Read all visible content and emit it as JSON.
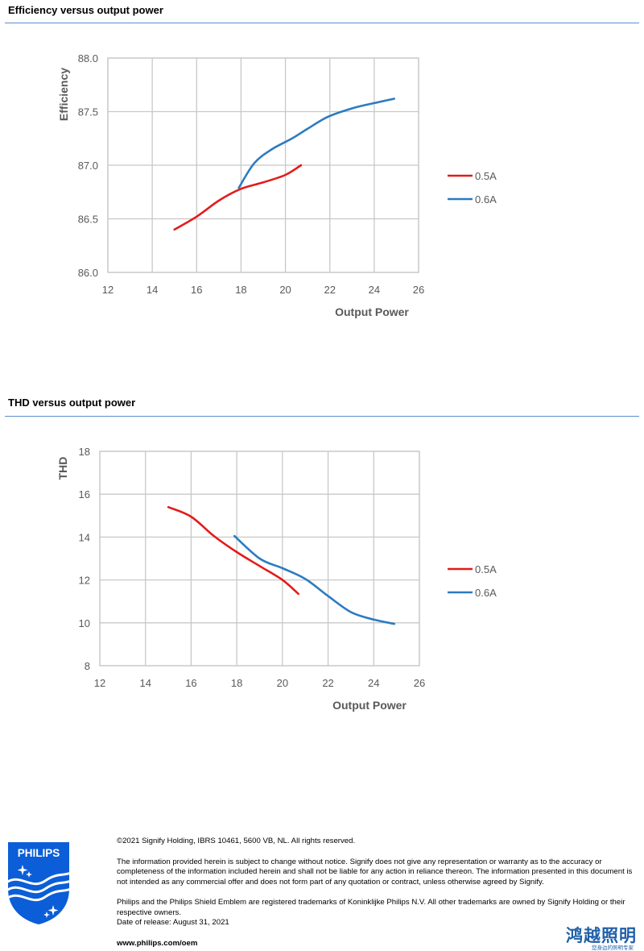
{
  "sections": [
    {
      "title": "Efficiency versus output power"
    },
    {
      "title": "THD versus output power"
    }
  ],
  "chart_data": [
    {
      "type": "line",
      "title": "",
      "xlabel": "Output Power",
      "ylabel": "Efficiency",
      "xlim": [
        12,
        26
      ],
      "ylim": [
        86.0,
        88.0
      ],
      "x_ticks": [
        "12",
        "14",
        "16",
        "18",
        "20",
        "22",
        "24",
        "26"
      ],
      "y_ticks": [
        "86.0",
        "86.5",
        "87.0",
        "87.5",
        "88.0"
      ],
      "grid": true,
      "legend_position": "right",
      "series": [
        {
          "name": "0.5A",
          "color": "#e31b1b",
          "x": [
            15.0,
            16.0,
            17.0,
            18.0,
            19.0,
            20.0,
            20.7
          ],
          "y": [
            86.4,
            86.52,
            86.67,
            86.78,
            86.84,
            86.91,
            87.0
          ]
        },
        {
          "name": "0.6A",
          "color": "#2c7bc0",
          "x": [
            17.9,
            18.6,
            19.4,
            20.3,
            21.0,
            21.9,
            23.0,
            24.0,
            24.9
          ],
          "y": [
            86.79,
            87.02,
            87.15,
            87.25,
            87.34,
            87.45,
            87.53,
            87.58,
            87.62
          ]
        }
      ]
    },
    {
      "type": "line",
      "title": "",
      "xlabel": "Output Power",
      "ylabel": "THD",
      "xlim": [
        12,
        26
      ],
      "ylim": [
        8,
        18
      ],
      "x_ticks": [
        "12",
        "14",
        "16",
        "18",
        "20",
        "22",
        "24",
        "26"
      ],
      "y_ticks": [
        "8",
        "10",
        "12",
        "14",
        "16",
        "18"
      ],
      "grid": true,
      "legend_position": "right",
      "series": [
        {
          "name": "0.5A",
          "color": "#e31b1b",
          "x": [
            15.0,
            16.0,
            17.0,
            18.0,
            19.0,
            20.0,
            20.7
          ],
          "y": [
            15.4,
            14.95,
            14.05,
            13.3,
            12.65,
            12.0,
            11.35
          ]
        },
        {
          "name": "0.6A",
          "color": "#2c7bc0",
          "x": [
            17.9,
            19.0,
            20.0,
            21.0,
            22.0,
            23.0,
            24.0,
            24.9
          ],
          "y": [
            14.05,
            13.0,
            12.55,
            12.05,
            11.25,
            10.5,
            10.15,
            9.95
          ]
        }
      ]
    }
  ],
  "footer": {
    "copyright": "©2021 Signify Holding, IBRS 10461, 5600 VB, NL. All rights reserved.",
    "disclaimer": "The information provided herein is subject to change without notice. Signify does not give any representation or warranty as to the accuracy or completeness of the information included herein and shall not be liable for any action in reliance thereon. The information presented in this document is not intended as any commercial offer and does not form part of any quotation or contract, unless otherwise agreed by Signify.",
    "trademark": "Philips and the Philips Shield Emblem are registered trademarks of Koninklijke Philips N.V. All other trademarks are owned by Signify Holding or their respective owners.",
    "release_date": "Date of release: August 31, 2021",
    "website": "www.philips.com/oem",
    "logo_text": "PHILIPS",
    "brand_cn": "鸿越照明",
    "brand_cn_sub": "您身边的照明专家"
  },
  "colors": {
    "rule": "#5b8fc9",
    "series_05": "#e31b1b",
    "series_06": "#2c7bc0",
    "philips_blue": "#0b5ed7"
  }
}
